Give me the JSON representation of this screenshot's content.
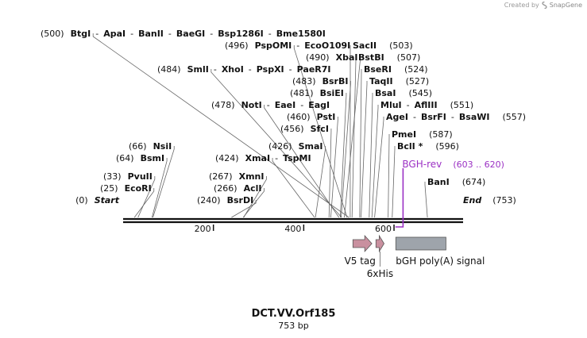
{
  "credit": {
    "text": "Created by",
    "brand": "SnapGene"
  },
  "map_title": "DCT.VV.Orf185",
  "map_length": "753 bp",
  "total_bp": 753,
  "colors": {
    "v5": "#c9909f",
    "his": "#c9909f",
    "bgh": "#9ea4ab",
    "primer": "#9b30c4",
    "line": "#111111",
    "leader": "#666666"
  },
  "ticks": [
    "200",
    "400",
    "600"
  ],
  "tick_values": [
    200,
    400,
    600
  ],
  "rows": [
    {
      "bp": 0,
      "items": [
        {
          "pos": "(0)",
          "name": "Start",
          "end": true
        },
        {
          "pos": "(753)",
          "name": "End",
          "end": true,
          "right": true
        }
      ]
    },
    {
      "bp": 25,
      "items": [
        {
          "pos": "(25)",
          "name": "EcoRI"
        }
      ]
    },
    {
      "bp": 33,
      "items": [
        {
          "pos": "(33)",
          "name": "PvuII"
        }
      ]
    },
    {
      "bp": 64,
      "items": [
        {
          "pos": "(64)",
          "name": "BsmI"
        }
      ]
    },
    {
      "bp": 66,
      "items": [
        {
          "pos": "(66)",
          "name": "NsiI"
        }
      ]
    },
    {
      "bp": 240,
      "items": [
        {
          "pos": "(240)",
          "name": "BsrDI"
        }
      ]
    },
    {
      "bp": 266,
      "items": [
        {
          "pos": "(266)",
          "name": "AclI"
        }
      ]
    },
    {
      "bp": 267,
      "items": [
        {
          "pos": "(267)",
          "name": "XmnI"
        }
      ]
    },
    {
      "bp": 424,
      "items": [
        {
          "pos": "(424)",
          "name": "XmaI"
        },
        {
          "name": "TspMI"
        }
      ]
    },
    {
      "bp": 426,
      "items": [
        {
          "pos": "(426)",
          "name": "SmaI"
        }
      ]
    },
    {
      "bp": 456,
      "items": [
        {
          "pos": "(456)",
          "name": "SfcI"
        }
      ]
    },
    {
      "bp": 460,
      "items": [
        {
          "pos": "(460)",
          "name": "PstI"
        }
      ]
    },
    {
      "bp": 478,
      "items": [
        {
          "pos": "(478)",
          "name": "NotI"
        },
        {
          "name": "EaeI"
        },
        {
          "name": "EagI"
        }
      ]
    },
    {
      "bp": 481,
      "items": [
        {
          "pos": "(481)",
          "name": "BsiEI"
        }
      ]
    },
    {
      "bp": 483,
      "items": [
        {
          "pos": "(483)",
          "name": "BsrBI"
        }
      ]
    },
    {
      "bp": 484,
      "items": [
        {
          "pos": "(484)",
          "name": "SmlI"
        },
        {
          "name": "XhoI"
        },
        {
          "name": "PspXI"
        },
        {
          "name": "PaeR7I"
        }
      ]
    },
    {
      "bp": 490,
      "items": [
        {
          "pos": "(490)",
          "name": "XbaI"
        }
      ]
    },
    {
      "bp": 496,
      "items": [
        {
          "pos": "(496)",
          "name": "PspOMI"
        },
        {
          "name": "EcoO109I"
        }
      ]
    },
    {
      "bp": 500,
      "items": [
        {
          "pos": "(500)",
          "name": "BtgI"
        },
        {
          "name": "ApaI"
        },
        {
          "name": "BanII"
        },
        {
          "name": "BaeGI"
        },
        {
          "name": "Bsp1286I"
        },
        {
          "name": "Bme1580I"
        }
      ]
    },
    {
      "bp": 503,
      "items": [
        {
          "name": "SacII",
          "pos": "(503)"
        }
      ]
    },
    {
      "bp": 507,
      "items": [
        {
          "name": "BstBI",
          "pos": "(507)"
        }
      ]
    },
    {
      "bp": 524,
      "items": [
        {
          "name": "BseRI",
          "pos": "(524)"
        }
      ]
    },
    {
      "bp": 527,
      "items": [
        {
          "name": "TaqII",
          "pos": "(527)"
        }
      ]
    },
    {
      "bp": 545,
      "items": [
        {
          "name": "BsaI",
          "pos": "(545)"
        }
      ]
    },
    {
      "bp": 551,
      "items": [
        {
          "name": "MluI"
        },
        {
          "name": "AflIII",
          "pos": "(551)"
        }
      ]
    },
    {
      "bp": 557,
      "items": [
        {
          "name": "AgeI"
        },
        {
          "name": "BsrFI"
        },
        {
          "name": "BsaWI",
          "pos": "(557)"
        }
      ]
    },
    {
      "bp": 587,
      "items": [
        {
          "name": "PmeI",
          "pos": "(587)"
        }
      ]
    },
    {
      "bp": 596,
      "items": [
        {
          "name": "BclI *",
          "pos": "(596)"
        }
      ]
    },
    {
      "bp": 674,
      "items": [
        {
          "name": "BanI",
          "pos": "(674)"
        }
      ]
    }
  ],
  "primer": {
    "name": "BGH-rev",
    "range": "(603 .. 620)",
    "start": 603,
    "end": 620
  },
  "features": [
    {
      "name": "V5 tag",
      "start": 509,
      "end": 551,
      "shape": "arrow"
    },
    {
      "name": "6xHis",
      "start": 560,
      "end": 578,
      "shape": "arrow"
    },
    {
      "name": "bGH poly(A) signal",
      "start": 604,
      "end": 715,
      "shape": "box"
    }
  ]
}
